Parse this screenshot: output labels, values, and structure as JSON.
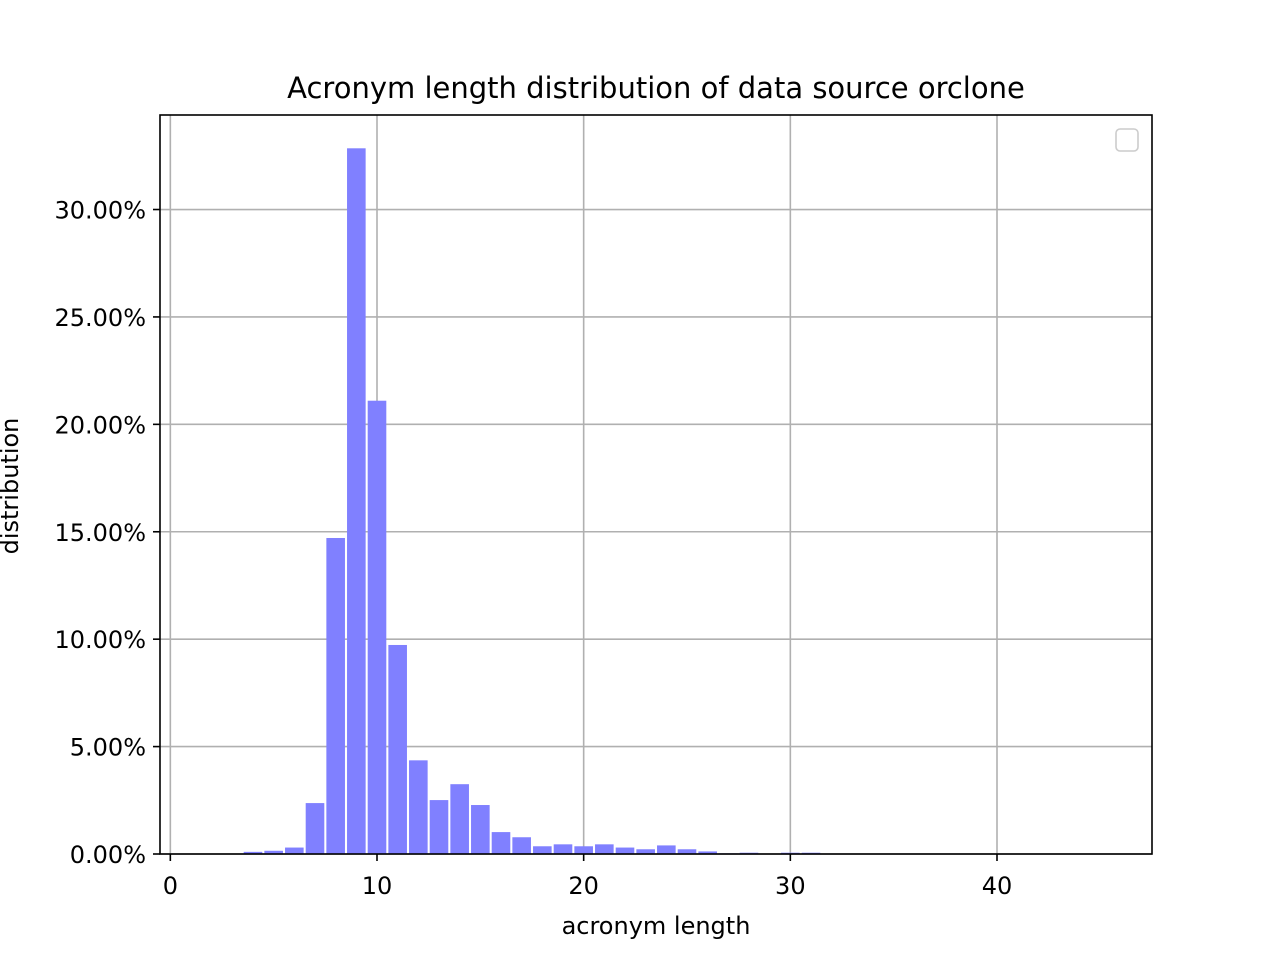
{
  "chart_data": {
    "type": "bar",
    "title": "Acronym length distribution of data source orclone",
    "xlabel": "acronym length",
    "ylabel": "distribution",
    "xlim": [
      -0.5,
      47.5
    ],
    "ylim": [
      0,
      0.344
    ],
    "x_ticks": [
      0,
      10,
      20,
      30,
      40
    ],
    "x_tick_labels": [
      "0",
      "10",
      "20",
      "30",
      "40"
    ],
    "y_ticks": [
      0,
      0.05,
      0.1,
      0.15,
      0.2,
      0.25,
      0.3
    ],
    "y_tick_labels": [
      "0.00%",
      "5.00%",
      "10.00%",
      "15.00%",
      "20.00%",
      "25.00%",
      "30.00%"
    ],
    "grid": true,
    "legend": "top-right (empty)",
    "bar_color": "#8080ff",
    "bars": [
      {
        "x": 4,
        "value": 0.001
      },
      {
        "x": 5,
        "value": 0.0015
      },
      {
        "x": 6,
        "value": 0.003
      },
      {
        "x": 7,
        "value": 0.0237
      },
      {
        "x": 8,
        "value": 0.1471
      },
      {
        "x": 9,
        "value": 0.3285
      },
      {
        "x": 10,
        "value": 0.211
      },
      {
        "x": 11,
        "value": 0.0973
      },
      {
        "x": 12,
        "value": 0.0436
      },
      {
        "x": 13,
        "value": 0.0251
      },
      {
        "x": 14,
        "value": 0.0325
      },
      {
        "x": 15,
        "value": 0.0228
      },
      {
        "x": 16,
        "value": 0.0102
      },
      {
        "x": 17,
        "value": 0.0078
      },
      {
        "x": 18,
        "value": 0.0036
      },
      {
        "x": 19,
        "value": 0.0045
      },
      {
        "x": 20,
        "value": 0.0036
      },
      {
        "x": 21,
        "value": 0.0045
      },
      {
        "x": 22,
        "value": 0.003
      },
      {
        "x": 23,
        "value": 0.0022
      },
      {
        "x": 24,
        "value": 0.004
      },
      {
        "x": 25,
        "value": 0.0022
      },
      {
        "x": 26,
        "value": 0.0012
      },
      {
        "x": 27,
        "value": 0.0003
      },
      {
        "x": 28,
        "value": 0.0006
      },
      {
        "x": 29,
        "value": 0.0002
      },
      {
        "x": 30,
        "value": 0.0006
      },
      {
        "x": 31,
        "value": 0.0006
      }
    ]
  }
}
